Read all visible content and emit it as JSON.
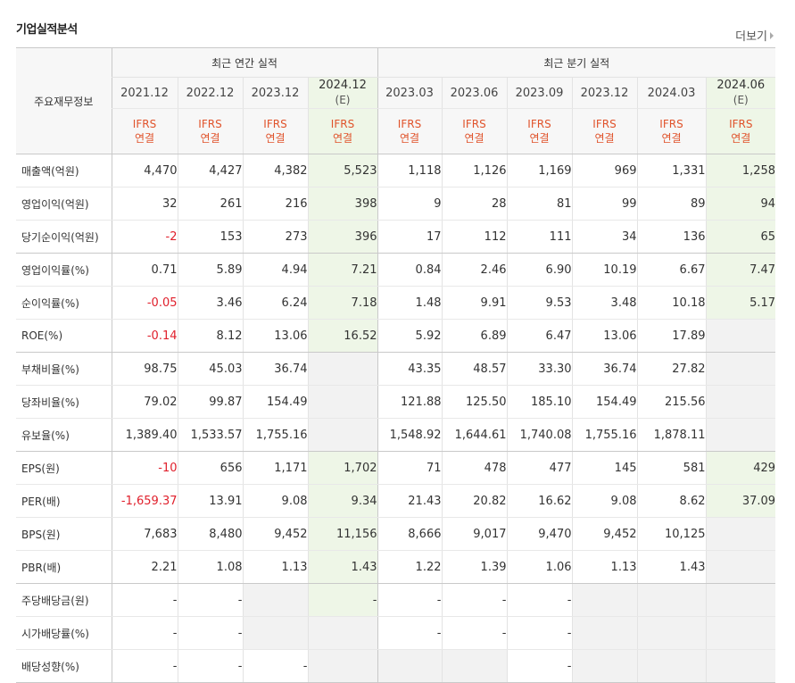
{
  "title": "기업실적분석",
  "more_label": "더보기",
  "header": {
    "row_label": "주요재무정보",
    "annual_group": "최근 연간 실적",
    "quarter_group": "최근 분기 실적",
    "periods": [
      {
        "main": "2021.12",
        "sub": ""
      },
      {
        "main": "2022.12",
        "sub": ""
      },
      {
        "main": "2023.12",
        "sub": ""
      },
      {
        "main": "2024.12",
        "sub": "(E)"
      },
      {
        "main": "2023.03",
        "sub": ""
      },
      {
        "main": "2023.06",
        "sub": ""
      },
      {
        "main": "2023.09",
        "sub": ""
      },
      {
        "main": "2023.12",
        "sub": ""
      },
      {
        "main": "2024.03",
        "sub": ""
      },
      {
        "main": "2024.06",
        "sub": "(E)"
      }
    ],
    "ifrs_top": "IFRS",
    "ifrs_bottom": "연결"
  },
  "rows": [
    {
      "label": "매출액(억원)",
      "values": [
        "4,470",
        "4,427",
        "4,382",
        "5,523",
        "1,118",
        "1,126",
        "1,169",
        "969",
        "1,331",
        "1,258"
      ]
    },
    {
      "label": "영업이익(억원)",
      "values": [
        "32",
        "261",
        "216",
        "398",
        "9",
        "28",
        "81",
        "99",
        "89",
        "94"
      ]
    },
    {
      "label": "당기순이익(억원)",
      "values": [
        "-2",
        "153",
        "273",
        "396",
        "17",
        "112",
        "111",
        "34",
        "136",
        "65"
      ]
    },
    {
      "label": "영업이익률(%)",
      "values": [
        "0.71",
        "5.89",
        "4.94",
        "7.21",
        "0.84",
        "2.46",
        "6.90",
        "10.19",
        "6.67",
        "7.47"
      ]
    },
    {
      "label": "순이익률(%)",
      "values": [
        "-0.05",
        "3.46",
        "6.24",
        "7.18",
        "1.48",
        "9.91",
        "9.53",
        "3.48",
        "10.18",
        "5.17"
      ]
    },
    {
      "label": "ROE(%)",
      "values": [
        "-0.14",
        "8.12",
        "13.06",
        "16.52",
        "5.92",
        "6.89",
        "6.47",
        "13.06",
        "17.89",
        ""
      ]
    },
    {
      "label": "부채비율(%)",
      "values": [
        "98.75",
        "45.03",
        "36.74",
        "",
        "43.35",
        "48.57",
        "33.30",
        "36.74",
        "27.82",
        ""
      ]
    },
    {
      "label": "당좌비율(%)",
      "values": [
        "79.02",
        "99.87",
        "154.49",
        "",
        "121.88",
        "125.50",
        "185.10",
        "154.49",
        "215.56",
        ""
      ]
    },
    {
      "label": "유보율(%)",
      "values": [
        "1,389.40",
        "1,533.57",
        "1,755.16",
        "",
        "1,548.92",
        "1,644.61",
        "1,740.08",
        "1,755.16",
        "1,878.11",
        ""
      ]
    },
    {
      "label": "EPS(원)",
      "values": [
        "-10",
        "656",
        "1,171",
        "1,702",
        "71",
        "478",
        "477",
        "145",
        "581",
        "429"
      ]
    },
    {
      "label": "PER(배)",
      "values": [
        "-1,659.37",
        "13.91",
        "9.08",
        "9.34",
        "21.43",
        "20.82",
        "16.62",
        "9.08",
        "8.62",
        "37.09"
      ]
    },
    {
      "label": "BPS(원)",
      "values": [
        "7,683",
        "8,480",
        "9,452",
        "11,156",
        "8,666",
        "9,017",
        "9,470",
        "9,452",
        "10,125",
        ""
      ]
    },
    {
      "label": "PBR(배)",
      "values": [
        "2.21",
        "1.08",
        "1.13",
        "1.43",
        "1.22",
        "1.39",
        "1.06",
        "1.13",
        "1.43",
        ""
      ]
    },
    {
      "label": "주당배당금(원)",
      "values": [
        "-",
        "-",
        "",
        "-",
        "-",
        "-",
        "-",
        "",
        "",
        ""
      ]
    },
    {
      "label": "시가배당률(%)",
      "values": [
        "-",
        "-",
        "",
        "",
        "-",
        "-",
        "-",
        "",
        "",
        ""
      ]
    },
    {
      "label": "배당성향(%)",
      "values": [
        "-",
        "-",
        "-",
        "",
        "",
        "",
        "-",
        "",
        "",
        ""
      ]
    }
  ]
}
